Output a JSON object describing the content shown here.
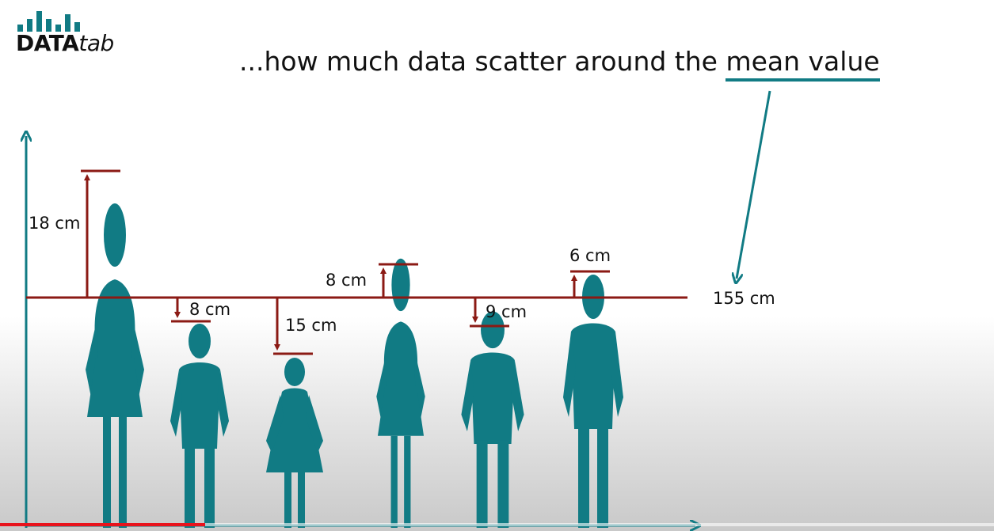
{
  "logo": {
    "bold": "DATA",
    "italic": "tab"
  },
  "headline": {
    "prefix": "...how much data scatter around the ",
    "highlight": "mean value"
  },
  "mean": {
    "label": "155 cm",
    "value_cm": 155
  },
  "people": [
    {
      "type": "woman",
      "deviation_label": "18 cm",
      "deviation_cm": 18,
      "direction": "up"
    },
    {
      "type": "boy",
      "deviation_label": "8 cm",
      "deviation_cm": -8,
      "direction": "down"
    },
    {
      "type": "girl",
      "deviation_label": "15 cm",
      "deviation_cm": -15,
      "direction": "down"
    },
    {
      "type": "woman",
      "deviation_label": "8 cm",
      "deviation_cm": 8,
      "direction": "up"
    },
    {
      "type": "boy",
      "deviation_label": "9 cm",
      "deviation_cm": -9,
      "direction": "down"
    },
    {
      "type": "man",
      "deviation_label": "6 cm",
      "deviation_cm": 6,
      "direction": "up"
    }
  ],
  "colors": {
    "figure": "#117b84",
    "deviation": "#8b1a14",
    "axis": "#117b84",
    "progress": "#e8131c"
  },
  "video": {
    "progress": 0.206
  }
}
